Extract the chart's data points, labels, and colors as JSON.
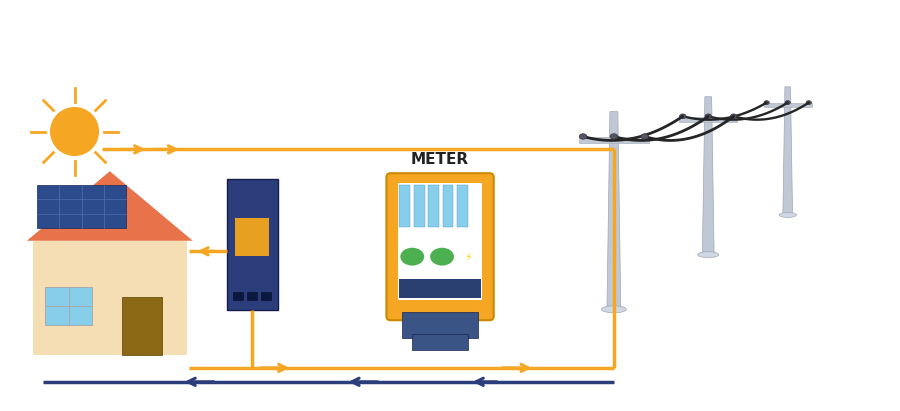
{
  "bg_color": "#ffffff",
  "arrow_yellow": "#F5A623",
  "arrow_blue": "#2B3D7A",
  "house_wall": "#F5DEB3",
  "house_roof": "#E8734A",
  "house_window": "#87CEEB",
  "house_door": "#8B6914",
  "solar_panel": "#2B4B8C",
  "sun_color": "#F5A623",
  "inverter_body": "#2B3D7A",
  "inverter_screen": "#E8A020",
  "meter_outer": "#F5A623",
  "meter_inner": "#ffffff",
  "meter_display_blue": "#87CEEB",
  "meter_display_green": "#4CAF50",
  "meter_base": "#3A5585",
  "pole_color": "#C0C8D5",
  "pole_edge": "#A0A8B5",
  "wire_color": "#252525",
  "insulator_color": "#555566",
  "label_meter": "METER",
  "label_fontsize": 11
}
